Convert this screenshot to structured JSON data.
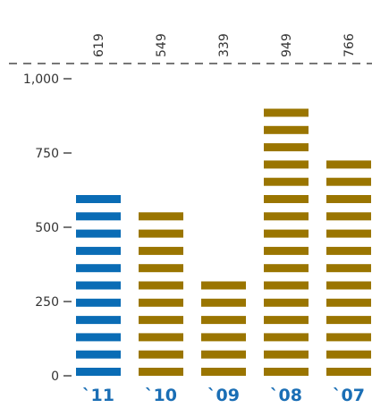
{
  "chart_data": {
    "type": "bar",
    "categories": [
      "`11",
      "`10",
      "`09",
      "`08",
      "`07"
    ],
    "values": [
      619,
      549,
      339,
      949,
      766
    ],
    "value_labels": [
      "619",
      "549",
      "339",
      "949",
      "766"
    ],
    "yticks": [
      "0",
      "250",
      "500",
      "750",
      "1,000"
    ],
    "ytick_values": [
      0,
      250,
      500,
      750,
      1000
    ],
    "ylim": [
      0,
      1000
    ],
    "grid": false,
    "highlight_index": 0,
    "colors": {
      "highlight": "#0a6cb5",
      "default": "#9a7500",
      "axis": "#777777",
      "category_text": "#1a6eb5"
    },
    "title": "",
    "xlabel": "",
    "ylabel": ""
  }
}
